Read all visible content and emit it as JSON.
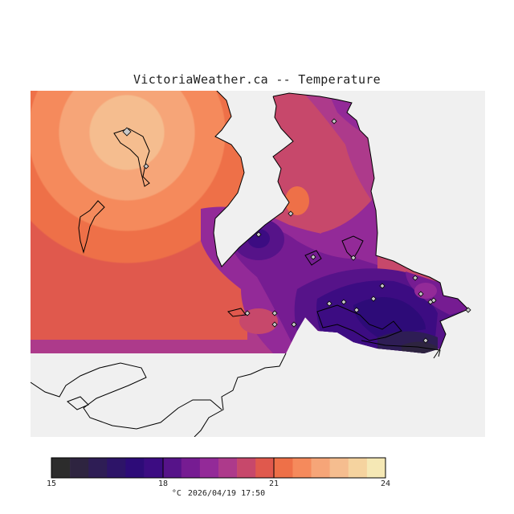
{
  "title": "VictoriaWeather.ca -- Temperature",
  "legend": {
    "min": 15,
    "max": 24,
    "tick_labels": [
      "15",
      "18",
      "21",
      "24"
    ],
    "unit": "°C",
    "timestamp": "2026/04/19 17:50",
    "colors": [
      "#2c2c2c",
      "#2e2440",
      "#2e1d55",
      "#2d1468",
      "#2d0b78",
      "#3c0c82",
      "#561389",
      "#761c92",
      "#932a98",
      "#ad3a8b",
      "#c7486b",
      "#e0594d",
      "#ee7048",
      "#f58a5c",
      "#f6a578",
      "#f5bd8f",
      "#f5d39f",
      "#f5e8b5"
    ]
  },
  "map": {
    "land_color": "#f0f0f0",
    "outline_color": "#000000",
    "station_marker": "diamond",
    "station_count": 24
  }
}
